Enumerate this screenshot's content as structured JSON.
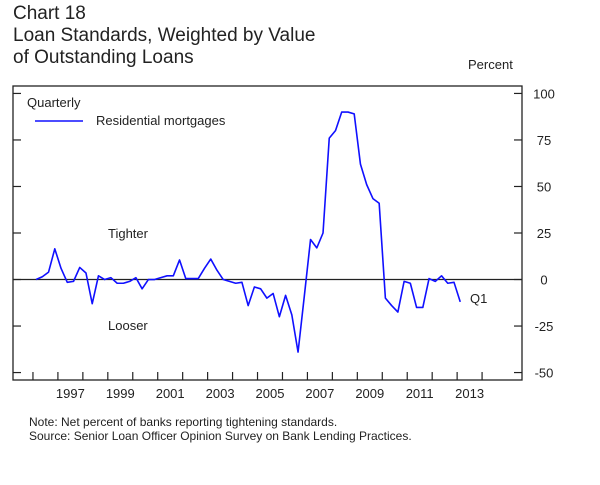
{
  "header": {
    "chart_number": "Chart 18",
    "title_line1": "Loan Standards, Weighted by Value",
    "title_line2": "of Outstanding Loans",
    "units": "Percent"
  },
  "footer": {
    "note": "Note: Net percent of banks reporting tightening standards.",
    "source": "Source: Senior Loan Officer Opinion Survey on Bank Lending Practices."
  },
  "chart_data": {
    "type": "line",
    "title": "Loan Standards, Weighted by Value of Outstanding Loans",
    "xlabel": "",
    "ylabel": "Percent",
    "frequency_label": "Quarterly",
    "ylim": [
      -54,
      104
    ],
    "xlim": [
      1995.2,
      2015.6
    ],
    "y_ticks": [
      100,
      75,
      50,
      25,
      0,
      -25,
      -50
    ],
    "x_tick_labels": [
      "1997",
      "1999",
      "2001",
      "2003",
      "2005",
      "2007",
      "2009",
      "2011",
      "2013"
    ],
    "x_tick_years": [
      1996,
      1997,
      1998,
      1999,
      2000,
      2001,
      2002,
      2003,
      2004,
      2005,
      2006,
      2007,
      2008,
      2009,
      2010,
      2011,
      2012,
      2013,
      2014
    ],
    "grid": false,
    "zero_line": true,
    "legend": {
      "placement": "top-left",
      "entries": [
        "Residential mortgages"
      ]
    },
    "annotations": {
      "upper": "Tighter",
      "lower": "Looser",
      "last_point": "Q1"
    },
    "colors": {
      "series": "#1010ff",
      "axis": "#222222"
    },
    "series": [
      {
        "name": "Residential mortgages",
        "start": "1996Q1",
        "end": "2013Q1",
        "x": [
          "1996Q1",
          "1996Q2",
          "1996Q3",
          "1996Q4",
          "1997Q1",
          "1997Q2",
          "1997Q3",
          "1997Q4",
          "1998Q1",
          "1998Q2",
          "1998Q3",
          "1998Q4",
          "1999Q1",
          "1999Q2",
          "1999Q3",
          "1999Q4",
          "2000Q1",
          "2000Q2",
          "2000Q3",
          "2000Q4",
          "2001Q1",
          "2001Q2",
          "2001Q3",
          "2001Q4",
          "2002Q1",
          "2002Q2",
          "2002Q3",
          "2002Q4",
          "2003Q1",
          "2003Q2",
          "2003Q3",
          "2003Q4",
          "2004Q1",
          "2004Q2",
          "2004Q3",
          "2004Q4",
          "2005Q1",
          "2005Q2",
          "2005Q3",
          "2005Q4",
          "2006Q1",
          "2006Q2",
          "2006Q3",
          "2006Q4",
          "2007Q1",
          "2007Q2",
          "2007Q3",
          "2007Q4",
          "2008Q1",
          "2008Q2",
          "2008Q3",
          "2008Q4",
          "2009Q1",
          "2009Q2",
          "2009Q3",
          "2009Q4",
          "2010Q1",
          "2010Q2",
          "2010Q3",
          "2010Q4",
          "2011Q1",
          "2011Q2",
          "2011Q3",
          "2011Q4",
          "2012Q1",
          "2012Q2",
          "2012Q3",
          "2012Q4",
          "2013Q1"
        ],
        "values": [
          0,
          1.5,
          4,
          16.5,
          6,
          -1.5,
          -1,
          6.5,
          3.5,
          -13,
          2,
          0,
          1,
          -2,
          -2,
          -1,
          1,
          -5,
          0,
          0,
          1,
          2,
          2,
          10.5,
          0.5,
          0.5,
          0.5,
          6,
          11,
          5,
          0,
          -1,
          -2,
          -1.5,
          -14,
          -4,
          -5,
          -10,
          -7.5,
          -20,
          -8.5,
          -19,
          -39,
          -9,
          21.5,
          17,
          25,
          76,
          80,
          90,
          90,
          89,
          62,
          51,
          43.5,
          41,
          -10,
          -14,
          -17.5,
          -1,
          -2,
          -15,
          -15,
          0.5,
          -1,
          2,
          -2,
          -1.5,
          -12
        ]
      }
    ]
  }
}
